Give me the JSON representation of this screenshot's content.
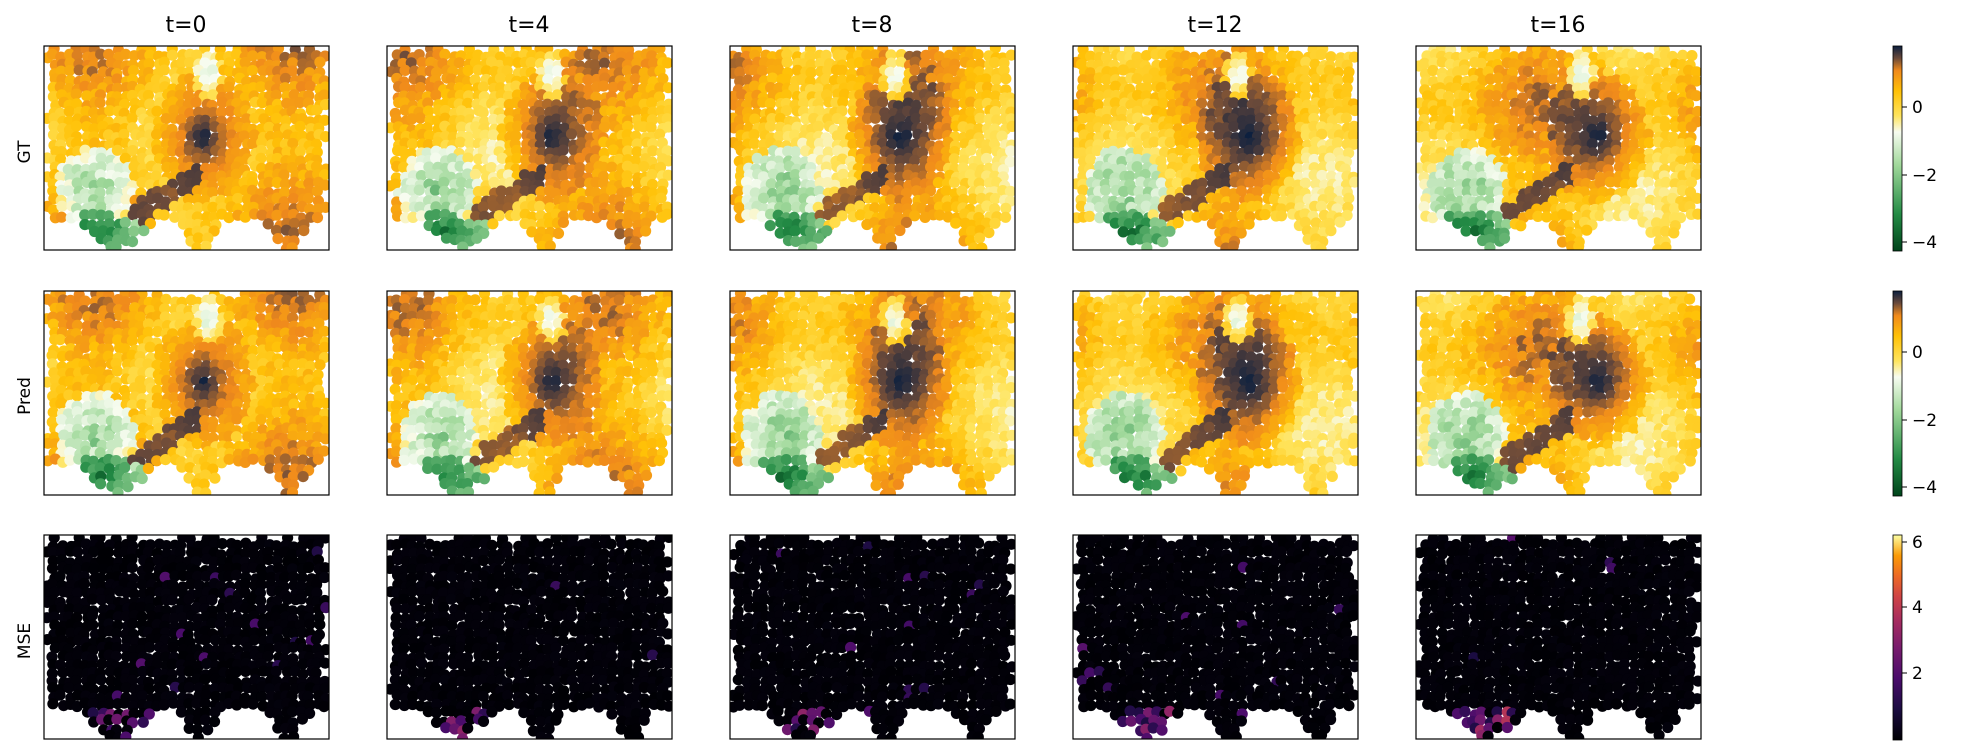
{
  "chart_data": {
    "type": "heatmap",
    "title": "",
    "columns": [
      "t=0",
      "t=4",
      "t=8",
      "t=12",
      "t=16"
    ],
    "rows": [
      {
        "label": "GT",
        "colormap": "yellow-orange-dark / green diverging",
        "colorbar": {
          "range": [
            -4.2,
            1.7
          ],
          "ticks": [
            0,
            -2,
            -4
          ],
          "tick_labels": [
            "0",
            "−2",
            "−4"
          ]
        }
      },
      {
        "label": "Pred",
        "colormap": "yellow-orange-dark / green diverging",
        "colorbar": {
          "range": [
            -4.2,
            1.7
          ],
          "ticks": [
            0,
            -2,
            -4
          ],
          "tick_labels": [
            "0",
            "−2",
            "−4"
          ]
        }
      },
      {
        "label": "MSE",
        "colormap": "inferno",
        "colorbar": {
          "range": [
            0,
            6.2
          ],
          "ticks": [
            6,
            4,
            2
          ],
          "tick_labels": [
            "6",
            "4",
            "2"
          ]
        }
      }
    ],
    "axes_ticks_visible": false,
    "grid": false
  },
  "colors": {
    "field_positive": "#ffd21a",
    "field_mid": "#ff9a1a",
    "field_peak": "#0a1f3f",
    "field_white": "#f3f8e8",
    "field_negative": "#00441b",
    "mse_low": "#000004",
    "mse_high": "#fcffa4"
  }
}
